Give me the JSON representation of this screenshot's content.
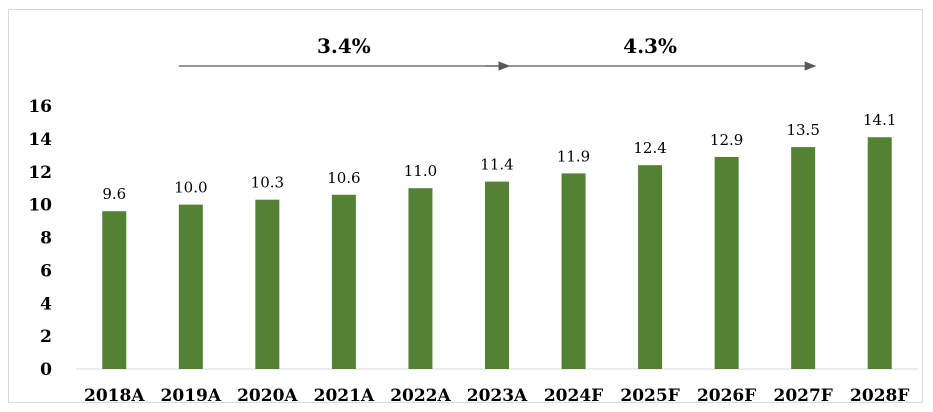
{
  "chart_data": {
    "type": "bar",
    "categories": [
      "2018A",
      "2019A",
      "2020A",
      "2021A",
      "2022A",
      "2023A",
      "2024F",
      "2025F",
      "2026F",
      "2027F",
      "2028F"
    ],
    "values": [
      9.6,
      10.0,
      10.3,
      10.6,
      11.0,
      11.4,
      11.9,
      12.4,
      12.9,
      13.5,
      14.1
    ],
    "data_labels": [
      "9.6",
      "10.0",
      "10.3",
      "10.6",
      "11.0",
      "11.4",
      "11.9",
      "12.4",
      "12.9",
      "13.5",
      "14.1"
    ],
    "title": "",
    "xlabel": "",
    "ylabel": "",
    "ylim": [
      0,
      16
    ],
    "yticks": [
      0,
      2,
      4,
      6,
      8,
      10,
      12,
      14,
      16
    ],
    "grid": false,
    "legend": "none",
    "bar_color": "#548235",
    "annotations": [
      {
        "text": "3.4%",
        "from": "2019A",
        "to": "2023A"
      },
      {
        "text": "4.3%",
        "from": "2023A",
        "to": "2027F"
      }
    ]
  }
}
